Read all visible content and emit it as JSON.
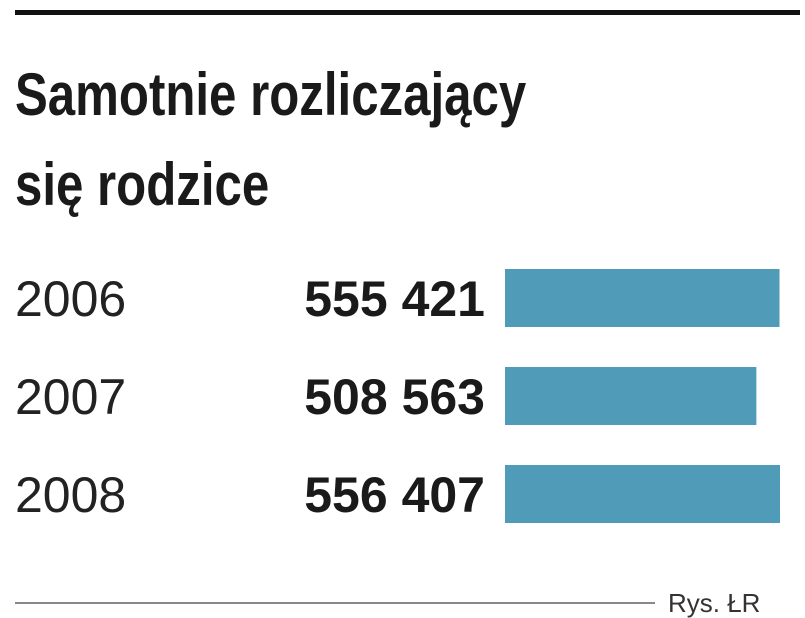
{
  "chart_data": {
    "type": "bar",
    "orientation": "horizontal",
    "title": [
      "Samotnie rozliczający",
      "się rodzice"
    ],
    "categories": [
      "2006",
      "2007",
      "2008"
    ],
    "values": [
      555421,
      508563,
      556407
    ],
    "value_labels": [
      "555 421",
      "508 563",
      "556 407"
    ],
    "color": "#4f9bb8",
    "source": "Rys. ŁR"
  }
}
